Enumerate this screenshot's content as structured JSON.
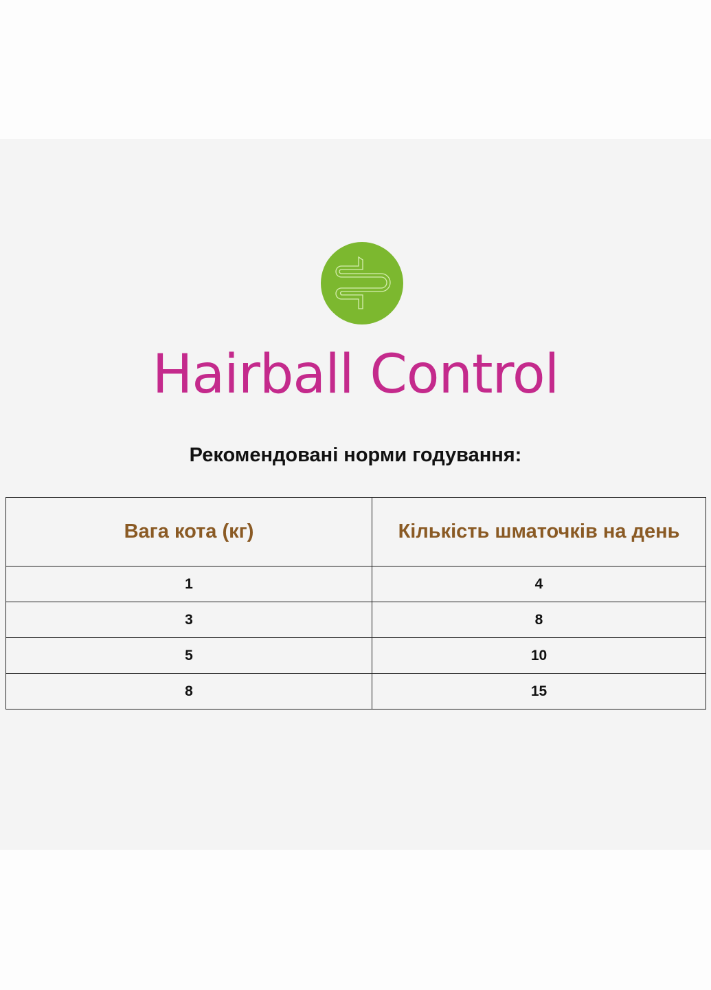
{
  "brand": {
    "name": "Hairball Control",
    "logo_icon": "intestine-icon",
    "logo_color": "#7cb82f",
    "brand_color": "#c42a8c"
  },
  "subtitle": "Рекомендовані норми годування:",
  "table": {
    "headers": [
      "Вага кота (кг)",
      "Кількість шматочків на день"
    ],
    "rows": [
      [
        "1",
        "4"
      ],
      [
        "3",
        "8"
      ],
      [
        "5",
        "10"
      ],
      [
        "8",
        "15"
      ]
    ]
  }
}
